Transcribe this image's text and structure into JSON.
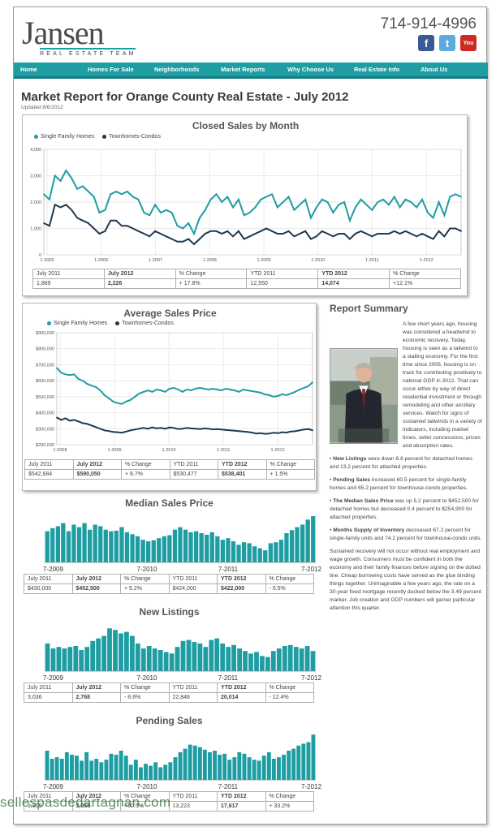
{
  "brand": {
    "name": "Jansen",
    "tagline": "REAL ESTATE TEAM",
    "phone": "714-914-4996"
  },
  "social": [
    {
      "icon": "facebook-icon",
      "glyph": "f"
    },
    {
      "icon": "twitter-icon",
      "glyph": "t"
    },
    {
      "icon": "youtube-icon",
      "glyph": "You"
    }
  ],
  "nav": [
    "Home",
    "Homes For Sale",
    "Neighborhoods",
    "Market Reports",
    "Why Choose Us",
    "Real Estate Info",
    "About Us"
  ],
  "report": {
    "title": "Market Report for Orange County Real Estate - July 2012",
    "updated": "Updated 8/6/2012"
  },
  "closed_sales": {
    "title": "Closed Sales by Month",
    "legend": [
      "Single Family Homes",
      "Townhomes-Condos"
    ],
    "table": [
      [
        "July 2011",
        "July 2012",
        "% Change",
        "YTD 2011",
        "YTD 2012",
        "% Change"
      ],
      [
        "1,889",
        "2,226",
        "+ 17.8%",
        "12,550",
        "14,074",
        "+12.1%"
      ]
    ]
  },
  "avg_price": {
    "title": "Average Sales Price",
    "legend": [
      "Single Family Homes",
      "Townhomes-Condos"
    ],
    "table": [
      [
        "July 2011",
        "July 2012",
        "% Change",
        "YTD 2011",
        "YTD 2012",
        "% Change"
      ],
      [
        "$542,684",
        "$590,050",
        "+ 8.7%",
        "$530,477",
        "$538,401",
        "+ 1.5%"
      ]
    ]
  },
  "median_price": {
    "title": "Median Sales Price",
    "axis": [
      "7-2009",
      "7-2010",
      "7-2011",
      "7-2012"
    ],
    "table": [
      [
        "July 2011",
        "July 2012",
        "% Change",
        "YTD 2011",
        "YTD 2012",
        "% Change"
      ],
      [
        "$430,000",
        "$452,500",
        "+ 5.2%",
        "$424,000",
        "$422,000",
        "- 0.5%"
      ]
    ]
  },
  "new_listings": {
    "title": "New Listings",
    "axis": [
      "7-2009",
      "7-2010",
      "7-2011",
      "7-2012"
    ],
    "table": [
      [
        "July 2011",
        "July 2012",
        "% Change",
        "YTD 2011",
        "YTD 2012",
        "% Change"
      ],
      [
        "3,036",
        "2,768",
        "- 8.8%",
        "22,848",
        "20,014",
        "- 12.4%"
      ]
    ]
  },
  "pending_sales": {
    "title": "Pending Sales",
    "axis": [
      "7-2009",
      "7-2010",
      "7-2011",
      "7-2012"
    ],
    "table": [
      [
        "July 2011",
        "July 2012",
        "% Change",
        "YTD 2011",
        "YTD 2012",
        "% Change"
      ],
      [
        "1,905",
        "3,058",
        "+60.5%",
        "13,223",
        "17,617",
        "+ 33.2%"
      ]
    ]
  },
  "summary": {
    "title": "Report Summary",
    "intro": "A few short years ago, housing was considered a headwind to economic recovery. Today, housing is seen as a tailwind to a stalling economy. For the first time since 2005, housing is on track for contributing positively to national GDP in 2012. That can occur either by way of direct residential investment or through remodeling and other ancillary services. Watch for signs of sustained tailwinds in a variety of indicators, including market times, seller concessions, prices and absorption rates.",
    "bullets": [
      {
        "label": "New Listings",
        "text": " were down 8.8 percent for detached homes and 13.2 percent for attached properties."
      },
      {
        "label": "Pending Sales",
        "text": " increased 60.5 percent for single-family homes and 65.2 percent for townhouse-condo properties."
      },
      {
        "label": "The Median Sales Price",
        "text": " was up 5.2 percent to $452,500 for detached homes but decreased 0.4 percent to $254,900 for attached properties."
      },
      {
        "label": "Months Supply of Inventory",
        "text": " decreased 67.2 percent for single-family units and 74.2 percent for townhouse-condo units."
      }
    ],
    "closing": "Sustained recovery will not occur without real employment and wage growth. Consumers must be confident in both the economy and their family finances before signing on the dotted line. Cheap borrowing costs have served as the glue binding things together. Unimaginable a few years ago, the rate on a 30-year fixed mortgage recently ducked below the 3.49 percent marker. Job creation and GDP numbers will garner particular attention this quarter."
  },
  "watermark": "sellespasdedartagnan.com",
  "colors": {
    "teal": "#1e9da3",
    "navy": "#1e3a52",
    "text": "#333333"
  },
  "chart_data": [
    {
      "type": "line",
      "title": "Closed Sales by Month",
      "xlabel": "",
      "ylabel": "",
      "x_ticks": [
        "1-2005",
        "1-2006",
        "1-2007",
        "1-2008",
        "1-2009",
        "1-2010",
        "1-2011",
        "1-2012"
      ],
      "y_ticks": [
        0,
        1000,
        2000,
        3000,
        4000
      ],
      "ylim": [
        0,
        4000
      ],
      "legend": "top-left",
      "series": [
        {
          "name": "Single Family Homes",
          "values": [
            2300,
            2100,
            3000,
            2800,
            3200,
            2900,
            2500,
            2600,
            2400,
            2200,
            1600,
            1700,
            2300,
            2400,
            2300,
            2400,
            2200,
            2100,
            1600,
            1500,
            1900,
            1600,
            1700,
            1600,
            1100,
            1000,
            1200,
            800,
            1400,
            1700,
            2100,
            2300,
            2000,
            2200,
            1800,
            2100,
            1500,
            1600,
            1800,
            2100,
            2200,
            2300,
            1800,
            2000,
            2200,
            1700,
            1900,
            2100,
            1400,
            1800,
            2100,
            2000,
            1600,
            1900,
            2000,
            1300,
            1800,
            2100,
            1900,
            1700,
            2000,
            2100,
            1900,
            2200,
            1800,
            2100,
            2000,
            1800,
            2100,
            1600,
            1400,
            2000,
            1500,
            2200,
            2300,
            2200
          ]
        },
        {
          "name": "Townhomes-Condos",
          "values": [
            1200,
            1100,
            1900,
            1800,
            1900,
            1700,
            1400,
            1300,
            1200,
            1000,
            800,
            900,
            1300,
            1300,
            1100,
            1100,
            1000,
            900,
            800,
            700,
            900,
            800,
            700,
            600,
            500,
            500,
            600,
            400,
            600,
            800,
            900,
            900,
            800,
            900,
            700,
            900,
            600,
            700,
            800,
            900,
            1000,
            900,
            800,
            800,
            900,
            700,
            800,
            900,
            600,
            700,
            900,
            800,
            700,
            800,
            800,
            600,
            800,
            900,
            800,
            700,
            800,
            800,
            800,
            900,
            800,
            900,
            800,
            700,
            800,
            700,
            600,
            900,
            700,
            1000,
            1000,
            900
          ]
        }
      ]
    },
    {
      "type": "line",
      "title": "Average Sales Price",
      "xlabel": "",
      "ylabel": "",
      "x_ticks": [
        "1-2008",
        "1-2009",
        "1-2010",
        "1-2011",
        "1-2012"
      ],
      "y_ticks": [
        "$200,000",
        "$300,000",
        "$400,000",
        "$500,000",
        "$600,000",
        "$700,000",
        "$800,000",
        "$900,000"
      ],
      "ylim": [
        200000,
        900000
      ],
      "legend": "top-left",
      "series": [
        {
          "name": "Single Family Homes",
          "values": [
            680000,
            650000,
            640000,
            635000,
            640000,
            610000,
            600000,
            580000,
            570000,
            560000,
            540000,
            510000,
            490000,
            470000,
            460000,
            455000,
            470000,
            480000,
            500000,
            520000,
            530000,
            540000,
            530000,
            545000,
            540000,
            530000,
            550000,
            555000,
            545000,
            530000,
            545000,
            540000,
            550000,
            555000,
            550000,
            545000,
            550000,
            545000,
            540000,
            550000,
            545000,
            540000,
            530000,
            545000,
            540000,
            535000,
            530000,
            525000,
            515000,
            510000,
            500000,
            505000,
            515000,
            510000,
            520000,
            530000,
            545000,
            555000,
            565000,
            590000
          ]
        },
        {
          "name": "Townhomes-Condos",
          "values": [
            370000,
            355000,
            365000,
            350000,
            355000,
            345000,
            335000,
            330000,
            320000,
            310000,
            300000,
            290000,
            285000,
            280000,
            278000,
            275000,
            282000,
            290000,
            295000,
            300000,
            305000,
            300000,
            308000,
            302000,
            305000,
            300000,
            308000,
            305000,
            298000,
            300000,
            305000,
            302000,
            300000,
            298000,
            302000,
            300000,
            296000,
            298000,
            295000,
            292000,
            290000,
            288000,
            285000,
            282000,
            280000,
            276000,
            270000,
            272000,
            268000,
            270000,
            275000,
            272000,
            278000,
            276000,
            282000,
            284000,
            290000,
            295000,
            298000,
            290000
          ]
        }
      ]
    },
    {
      "type": "bar",
      "title": "Median Sales Price",
      "x_ticks": [
        "7-2009",
        "7-2010",
        "7-2011",
        "7-2012"
      ],
      "values": [
        62,
        68,
        72,
        78,
        62,
        75,
        70,
        78,
        65,
        75,
        72,
        65,
        62,
        63,
        70,
        60,
        56,
        52,
        45,
        42,
        44,
        48,
        52,
        54,
        65,
        70,
        65,
        60,
        62,
        58,
        55,
        60,
        52,
        45,
        48,
        42,
        35,
        40,
        38,
        32,
        28,
        24,
        38,
        40,
        45,
        58,
        64,
        70,
        75,
        85,
        92
      ]
    },
    {
      "type": "bar",
      "title": "New Listings",
      "x_ticks": [
        "7-2009",
        "7-2010",
        "7-2011",
        "7-2012"
      ],
      "values": [
        55,
        45,
        48,
        45,
        48,
        50,
        42,
        48,
        60,
        65,
        70,
        85,
        82,
        75,
        78,
        70,
        55,
        45,
        50,
        45,
        42,
        38,
        35,
        48,
        60,
        62,
        58,
        55,
        48,
        62,
        65,
        55,
        48,
        52,
        45,
        40,
        35,
        38,
        30,
        28,
        40,
        45,
        50,
        52,
        48,
        45,
        50,
        40
      ]
    },
    {
      "type": "bar",
      "title": "Pending Sales",
      "x_ticks": [
        "7-2009",
        "7-2010",
        "7-2011",
        "7-2012"
      ],
      "values": [
        58,
        42,
        45,
        42,
        55,
        50,
        48,
        38,
        55,
        38,
        42,
        35,
        40,
        52,
        50,
        58,
        48,
        30,
        40,
        25,
        32,
        28,
        35,
        25,
        30,
        35,
        45,
        55,
        62,
        70,
        68,
        65,
        60,
        55,
        58,
        50,
        52,
        40,
        45,
        55,
        52,
        45,
        40,
        38,
        48,
        55,
        42,
        45,
        50,
        58,
        62,
        68,
        72,
        75,
        90
      ]
    }
  ]
}
